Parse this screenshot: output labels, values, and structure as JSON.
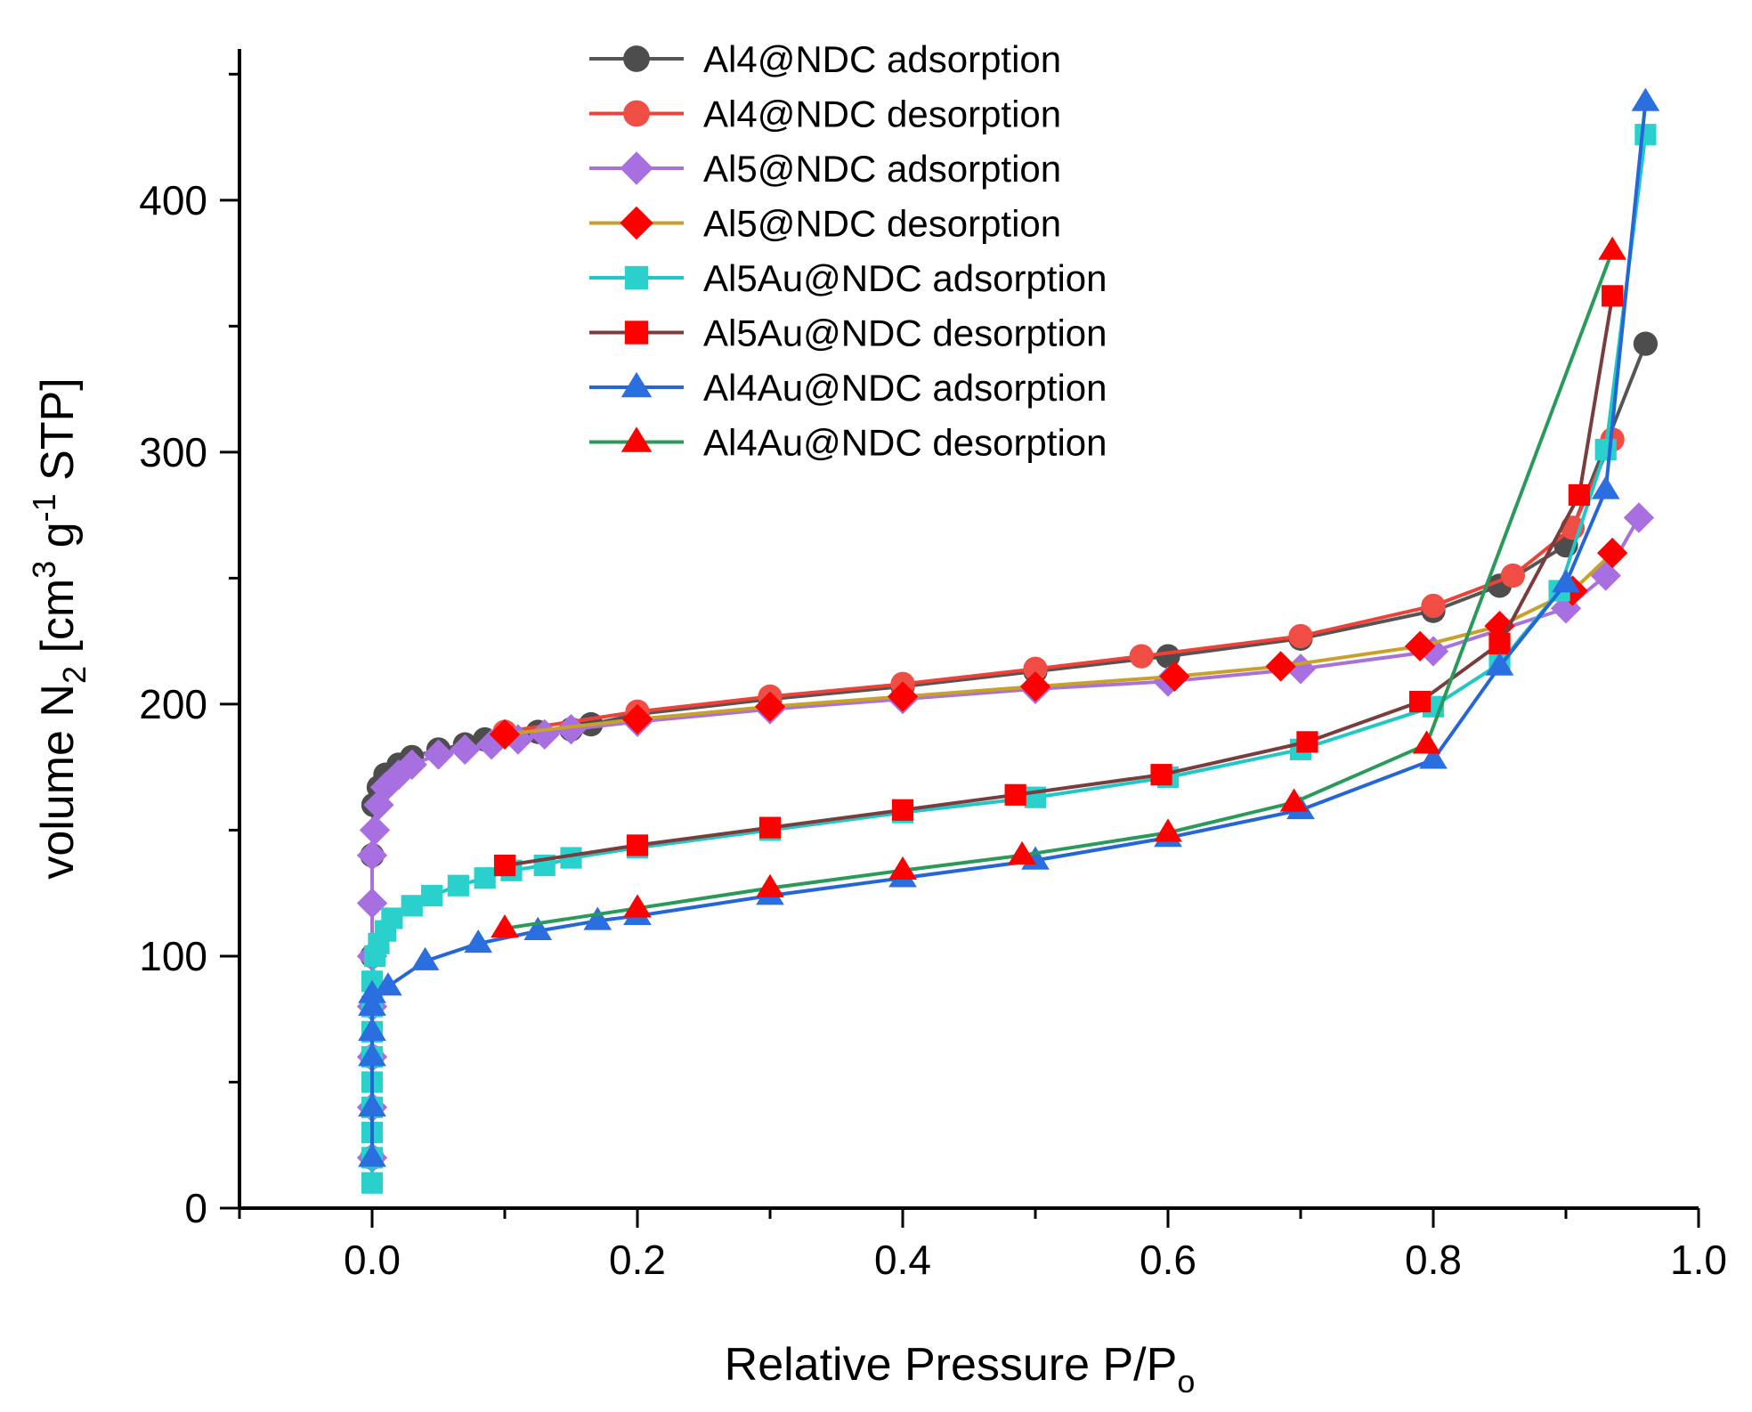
{
  "chart_data": {
    "type": "line",
    "title": "",
    "xlabel": {
      "main": "Relative Pressure P/P",
      "sub": "o"
    },
    "ylabel": {
      "main": "volume N",
      "sub": "2",
      "mid": " [cm",
      "sup1": "3",
      "mid2": " g",
      "sup2": "-1",
      "end": " STP]"
    },
    "xlim": [
      -0.1,
      1.0
    ],
    "ylim": [
      0,
      460
    ],
    "xticks": [
      0.0,
      0.2,
      0.4,
      0.6,
      0.8,
      1.0
    ],
    "xtick_labels": [
      "0.0",
      "0.2",
      "0.4",
      "0.6",
      "0.8",
      "1.0"
    ],
    "yticks": [
      0,
      100,
      200,
      300,
      400
    ],
    "ytick_labels": [
      "0",
      "100",
      "200",
      "300",
      "400"
    ],
    "legend_position": "top-center",
    "series": [
      {
        "name": "Al4@NDC adsorption",
        "line_color": "#555555",
        "marker": "circle",
        "marker_color": "#4d4d4d",
        "x": [
          0.0,
          0.0,
          0.0,
          0.0,
          0.001,
          0.005,
          0.01,
          0.02,
          0.03,
          0.05,
          0.07,
          0.085,
          0.1,
          0.125,
          0.15,
          0.165,
          0.2,
          0.3,
          0.4,
          0.5,
          0.6,
          0.7,
          0.8,
          0.85,
          0.9,
          0.96
        ],
        "y": [
          20,
          60,
          100,
          140,
          160,
          167,
          172,
          176,
          179,
          182,
          184,
          186,
          188,
          189,
          190,
          192,
          196,
          202,
          207,
          213,
          219,
          226,
          237,
          247,
          263,
          343
        ]
      },
      {
        "name": "Al4@NDC desorption",
        "line_color": "#ef4136",
        "marker": "circle",
        "marker_color": "#f04e45",
        "x": [
          0.935,
          0.905,
          0.86,
          0.8,
          0.7,
          0.58,
          0.5,
          0.4,
          0.3,
          0.2,
          0.1
        ],
        "y": [
          305,
          270,
          251,
          239,
          227,
          219,
          214,
          208,
          203,
          197,
          189
        ]
      },
      {
        "name": "Al5@NDC adsorption",
        "line_color": "#a873d9",
        "marker": "diamond",
        "marker_color": "#a86fe0",
        "x": [
          0.0,
          0.0,
          0.0,
          0.0,
          0.0,
          0.0,
          0.0,
          0.002,
          0.005,
          0.01,
          0.02,
          0.03,
          0.05,
          0.07,
          0.09,
          0.11,
          0.13,
          0.15,
          0.2,
          0.3,
          0.4,
          0.5,
          0.6,
          0.7,
          0.8,
          0.9,
          0.93,
          0.955
        ],
        "y": [
          20,
          40,
          60,
          80,
          100,
          121,
          140,
          150,
          160,
          167,
          172,
          176,
          180,
          182,
          184,
          186,
          188,
          190,
          193,
          198,
          202,
          206,
          209,
          214,
          221,
          238,
          251,
          274
        ]
      },
      {
        "name": "Al5@NDC desorption",
        "line_color": "#c9a02a",
        "marker": "diamond",
        "marker_color": "#ff0000",
        "x": [
          0.935,
          0.905,
          0.85,
          0.79,
          0.685,
          0.605,
          0.5,
          0.4,
          0.3,
          0.2,
          0.1
        ],
        "y": [
          260,
          245,
          231,
          223,
          215,
          211,
          207,
          203,
          199,
          194,
          188
        ]
      },
      {
        "name": "Al5Au@NDC adsorption",
        "line_color": "#21c7c7",
        "marker": "square",
        "marker_color": "#2ad0cc",
        "x": [
          0.0,
          0.0,
          0.0,
          0.0,
          0.0,
          0.0,
          0.0,
          0.0,
          0.0,
          0.002,
          0.005,
          0.01,
          0.015,
          0.03,
          0.045,
          0.065,
          0.085,
          0.105,
          0.13,
          0.15,
          0.2,
          0.3,
          0.4,
          0.5,
          0.6,
          0.7,
          0.8,
          0.85,
          0.895,
          0.93,
          0.96
        ],
        "y": [
          10,
          20,
          30,
          40,
          50,
          60,
          70,
          80,
          90,
          100,
          105,
          110,
          115,
          120,
          124,
          128,
          131,
          134,
          136,
          139,
          143,
          150,
          157,
          163,
          171,
          182,
          199,
          216,
          245,
          301,
          426
        ]
      },
      {
        "name": "Al5Au@NDC desorption",
        "line_color": "#7a3d3d",
        "marker": "square",
        "marker_color": "#ff0000",
        "x": [
          0.935,
          0.91,
          0.85,
          0.79,
          0.705,
          0.595,
          0.485,
          0.4,
          0.3,
          0.2,
          0.1
        ],
        "y": [
          362,
          283,
          224,
          201,
          185,
          172,
          164,
          158,
          151,
          144,
          136
        ]
      },
      {
        "name": "Al4Au@NDC adsorption",
        "line_color": "#2566d6",
        "marker": "triangle",
        "marker_color": "#2a6ee0",
        "x": [
          0.0,
          0.0,
          0.0,
          0.0,
          0.0,
          0.0,
          0.012,
          0.04,
          0.08,
          0.125,
          0.17,
          0.2,
          0.3,
          0.4,
          0.5,
          0.6,
          0.7,
          0.8,
          0.85,
          0.9,
          0.93,
          0.96
        ],
        "y": [
          20,
          40,
          60,
          70,
          80,
          85,
          88,
          98,
          105,
          110,
          114,
          116,
          124,
          131,
          138,
          147,
          158,
          178,
          215,
          248,
          285,
          439
        ]
      },
      {
        "name": "Al4Au@NDC desorption",
        "line_color": "#2a9a5a",
        "marker": "triangle",
        "marker_color": "#ff0000",
        "x": [
          0.935,
          0.795,
          0.695,
          0.6,
          0.49,
          0.4,
          0.3,
          0.2,
          0.1
        ],
        "y": [
          380,
          184,
          161,
          149,
          140,
          134,
          127,
          119,
          111
        ]
      }
    ]
  }
}
